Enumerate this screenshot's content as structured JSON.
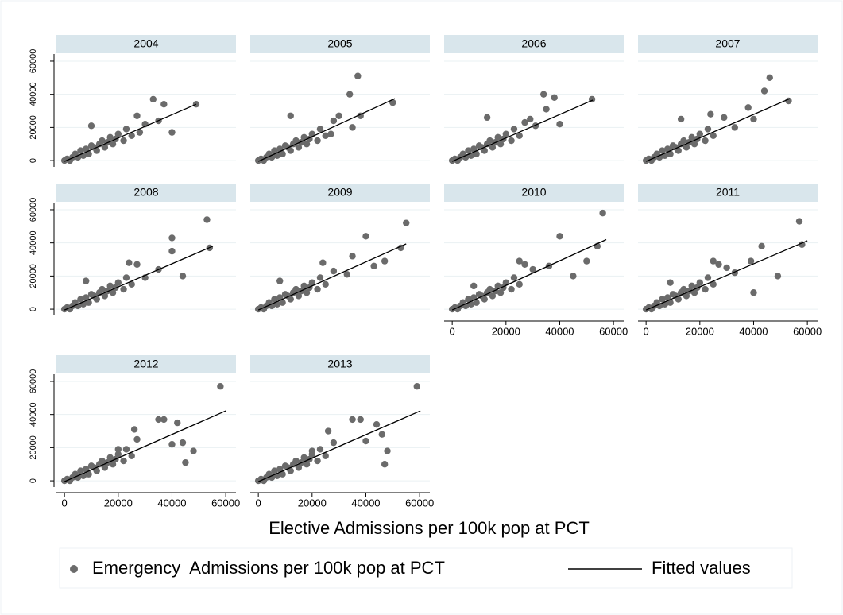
{
  "chart_data": {
    "type": "scatter",
    "xlabel": "Elective Admissions per 100k pop at PCT",
    "series": [
      {
        "name": "Emergency  Admissions per 100k pop at PCT",
        "color": "#6b6b6b"
      },
      {
        "name": "Fitted values",
        "color": "#000000"
      }
    ],
    "xlim": [
      -3000,
      63800
    ],
    "ylim": [
      -3800,
      64300
    ],
    "xticks": [
      0,
      20000,
      40000,
      60000
    ],
    "yticks": [
      0,
      20000,
      40000,
      60000
    ],
    "grid": true,
    "panels": [
      {
        "title": "2004",
        "x": [
          0,
          1000,
          2000,
          3000,
          4000,
          5000,
          6000,
          7000,
          8000,
          9000,
          10000,
          11000,
          12000,
          13000,
          14000,
          15000,
          16000,
          17000,
          18000,
          19000,
          20000,
          22000,
          23000,
          25000,
          10000,
          27000,
          28000,
          30000,
          33000,
          35000,
          37000,
          40000,
          49000
        ],
        "y": [
          0,
          1000,
          0,
          2000,
          4000,
          2000,
          6000,
          3000,
          7000,
          4000,
          9000,
          8000,
          6000,
          10000,
          12000,
          8000,
          11000,
          14000,
          10000,
          13000,
          16000,
          12000,
          19000,
          15000,
          21000,
          27000,
          17000,
          22000,
          37000,
          24000,
          34000,
          17000,
          34000
        ],
        "fit_x": [
          0,
          49000
        ],
        "fit_y": [
          -500,
          34000
        ]
      },
      {
        "title": "2005",
        "x": [
          0,
          1000,
          2000,
          3000,
          4000,
          5000,
          6000,
          7000,
          8000,
          9000,
          10000,
          11000,
          12000,
          13000,
          14000,
          15000,
          16000,
          17000,
          18000,
          19000,
          20000,
          22000,
          23000,
          25000,
          12000,
          27000,
          28000,
          30000,
          34000,
          35000,
          37000,
          38000,
          50000
        ],
        "y": [
          0,
          1000,
          0,
          2000,
          4000,
          2000,
          6000,
          3000,
          7000,
          4000,
          9000,
          8000,
          6000,
          10000,
          12000,
          8000,
          11000,
          14000,
          10000,
          13000,
          16000,
          12000,
          19000,
          15000,
          27000,
          16000,
          24000,
          27000,
          40000,
          20000,
          51000,
          27000,
          35000
        ],
        "fit_x": [
          0,
          50800
        ],
        "fit_y": [
          -500,
          37400
        ]
      },
      {
        "title": "2006",
        "x": [
          0,
          1000,
          2000,
          3000,
          4000,
          5000,
          6000,
          7000,
          8000,
          9000,
          10000,
          11000,
          12000,
          13000,
          14000,
          15000,
          16000,
          17000,
          18000,
          19000,
          20000,
          22000,
          23000,
          25000,
          13000,
          27000,
          29000,
          31000,
          34000,
          35000,
          38000,
          40000,
          52000
        ],
        "y": [
          0,
          1000,
          0,
          2000,
          4000,
          2000,
          6000,
          3000,
          7000,
          4000,
          9000,
          8000,
          6000,
          10000,
          12000,
          8000,
          11000,
          14000,
          10000,
          13000,
          16000,
          12000,
          19000,
          15000,
          26000,
          23000,
          25000,
          21000,
          40000,
          31000,
          38000,
          22000,
          37000
        ],
        "fit_x": [
          0,
          52300
        ],
        "fit_y": [
          -500,
          36500
        ]
      },
      {
        "title": "2007",
        "x": [
          0,
          1000,
          2000,
          3000,
          4000,
          5000,
          6000,
          7000,
          8000,
          9000,
          10000,
          11000,
          12000,
          13000,
          14000,
          15000,
          16000,
          17000,
          18000,
          19000,
          20000,
          22000,
          23000,
          25000,
          13000,
          24000,
          29000,
          33000,
          38000,
          40000,
          44000,
          46000,
          53000
        ],
        "y": [
          0,
          1000,
          0,
          2000,
          4000,
          2000,
          6000,
          3000,
          7000,
          4000,
          9000,
          8000,
          6000,
          10000,
          12000,
          8000,
          11000,
          14000,
          10000,
          13000,
          16000,
          12000,
          19000,
          15000,
          25000,
          28000,
          26000,
          20000,
          32000,
          25000,
          42000,
          50000,
          36000
        ],
        "fit_x": [
          0,
          53500
        ],
        "fit_y": [
          -500,
          37400
        ]
      },
      {
        "title": "2008",
        "x": [
          0,
          1000,
          2000,
          3000,
          4000,
          5000,
          6000,
          7000,
          8000,
          9000,
          10000,
          11000,
          12000,
          13000,
          14000,
          15000,
          16000,
          17000,
          18000,
          19000,
          20000,
          22000,
          23000,
          25000,
          8000,
          24000,
          27000,
          30000,
          35000,
          40000,
          40000,
          44000,
          53000,
          54000
        ],
        "y": [
          0,
          1000,
          0,
          2000,
          4000,
          2000,
          6000,
          3000,
          7000,
          4000,
          9000,
          8000,
          6000,
          10000,
          12000,
          8000,
          11000,
          14000,
          10000,
          13000,
          16000,
          12000,
          19000,
          15000,
          17000,
          28000,
          27000,
          19000,
          24000,
          43000,
          35000,
          20000,
          54000,
          37000
        ],
        "fit_x": [
          0,
          55200
        ],
        "fit_y": [
          -500,
          38000
        ]
      },
      {
        "title": "2009",
        "x": [
          0,
          1000,
          2000,
          3000,
          4000,
          5000,
          6000,
          7000,
          8000,
          9000,
          10000,
          11000,
          12000,
          13000,
          14000,
          15000,
          16000,
          17000,
          18000,
          19000,
          20000,
          22000,
          23000,
          25000,
          8000,
          24000,
          28000,
          33000,
          35000,
          40000,
          43000,
          47000,
          53000,
          55000
        ],
        "y": [
          0,
          1000,
          0,
          2000,
          4000,
          2000,
          6000,
          3000,
          7000,
          4000,
          9000,
          8000,
          6000,
          10000,
          12000,
          8000,
          11000,
          14000,
          10000,
          13000,
          16000,
          12000,
          19000,
          15000,
          17000,
          28000,
          23000,
          21000,
          32000,
          44000,
          26000,
          29000,
          37000,
          52000
        ],
        "fit_x": [
          0,
          55000
        ],
        "fit_y": [
          -500,
          39400
        ]
      },
      {
        "title": "2010",
        "x": [
          0,
          1000,
          2000,
          3000,
          4000,
          5000,
          6000,
          7000,
          8000,
          9000,
          10000,
          11000,
          12000,
          13000,
          14000,
          15000,
          16000,
          17000,
          18000,
          19000,
          20000,
          22000,
          23000,
          25000,
          8000,
          25000,
          27000,
          30000,
          36000,
          40000,
          45000,
          50000,
          54000,
          56000
        ],
        "y": [
          0,
          1000,
          0,
          2000,
          4000,
          2000,
          6000,
          3000,
          7000,
          4000,
          9000,
          8000,
          6000,
          10000,
          12000,
          8000,
          11000,
          14000,
          10000,
          13000,
          16000,
          12000,
          19000,
          15000,
          14000,
          29000,
          27000,
          24000,
          26000,
          44000,
          20000,
          29000,
          38000,
          58000
        ],
        "fit_x": [
          0,
          57300
        ],
        "fit_y": [
          -500,
          42000
        ]
      },
      {
        "title": "2011",
        "x": [
          0,
          1000,
          2000,
          3000,
          4000,
          5000,
          6000,
          7000,
          8000,
          9000,
          10000,
          11000,
          12000,
          13000,
          14000,
          15000,
          16000,
          17000,
          18000,
          19000,
          20000,
          22000,
          23000,
          25000,
          9000,
          25000,
          27000,
          30000,
          33000,
          39000,
          40000,
          43000,
          49000,
          57000,
          58000
        ],
        "y": [
          0,
          1000,
          0,
          2000,
          4000,
          2000,
          6000,
          3000,
          7000,
          4000,
          9000,
          8000,
          6000,
          10000,
          12000,
          8000,
          11000,
          14000,
          10000,
          13000,
          16000,
          12000,
          19000,
          15000,
          16000,
          29000,
          27000,
          25000,
          22000,
          29000,
          10000,
          38000,
          20000,
          53000,
          39000
        ],
        "fit_x": [
          0,
          60000
        ],
        "fit_y": [
          -500,
          41300
        ]
      },
      {
        "title": "2012",
        "x": [
          0,
          1000,
          2000,
          3000,
          4000,
          5000,
          6000,
          7000,
          8000,
          9000,
          10000,
          11000,
          12000,
          13000,
          14000,
          15000,
          16000,
          17000,
          18000,
          19000,
          20000,
          22000,
          23000,
          25000,
          20000,
          26000,
          27000,
          35000,
          37000,
          40000,
          42000,
          44000,
          45000,
          48000,
          58000
        ],
        "y": [
          0,
          1000,
          0,
          2000,
          4000,
          2000,
          6000,
          3000,
          7000,
          4000,
          9000,
          8000,
          6000,
          10000,
          12000,
          8000,
          11000,
          14000,
          10000,
          13000,
          16000,
          12000,
          19000,
          15000,
          19000,
          31000,
          25000,
          37000,
          37000,
          22000,
          35000,
          23000,
          11000,
          18000,
          57000
        ],
        "fit_x": [
          0,
          60000
        ],
        "fit_y": [
          -500,
          42200
        ]
      },
      {
        "title": "2013",
        "x": [
          0,
          1000,
          2000,
          3000,
          4000,
          5000,
          6000,
          7000,
          8000,
          9000,
          10000,
          11000,
          12000,
          13000,
          14000,
          15000,
          16000,
          17000,
          18000,
          19000,
          20000,
          22000,
          23000,
          25000,
          20000,
          26000,
          28000,
          35000,
          38000,
          40000,
          44000,
          46000,
          47000,
          48000,
          59000
        ],
        "y": [
          0,
          1000,
          0,
          2000,
          4000,
          2000,
          6000,
          3000,
          7000,
          4000,
          9000,
          8000,
          6000,
          10000,
          12000,
          8000,
          11000,
          14000,
          10000,
          13000,
          16000,
          12000,
          19000,
          15000,
          18000,
          30000,
          23000,
          37000,
          37000,
          24000,
          34000,
          28000,
          10000,
          18000,
          57000
        ],
        "fit_x": [
          0,
          60300
        ],
        "fit_y": [
          -500,
          42200
        ]
      }
    ]
  }
}
